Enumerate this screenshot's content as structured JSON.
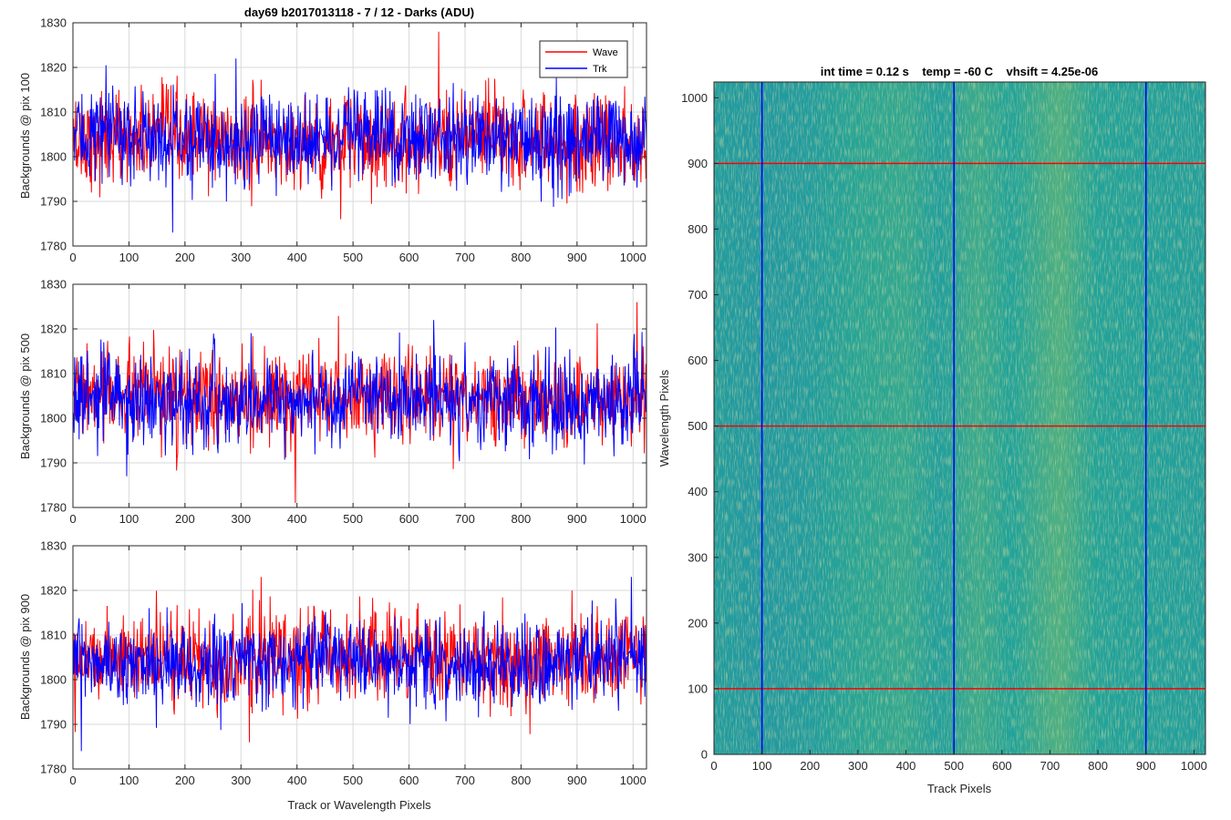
{
  "colors": {
    "wave": "#ff0000",
    "trk": "#0000ff",
    "grid": "#d9d9d9",
    "axis": "#262626",
    "heatmap_base": "#20a39a",
    "heatmap_light": "#7dba6a",
    "heatmap_dark": "#1f8fa8"
  },
  "chart_data": [
    {
      "type": "line",
      "title": "day69 b2017013118 - 7 / 12 - Darks (ADU)",
      "ylabel": "Backgrounds @ pix 100",
      "xlabel": "",
      "xlim": [
        0,
        1024
      ],
      "ylim": [
        1780,
        1830
      ],
      "xticks": [
        0,
        100,
        200,
        300,
        400,
        500,
        600,
        700,
        800,
        900,
        1000
      ],
      "yticks": [
        1780,
        1790,
        1800,
        1810,
        1820,
        1830
      ],
      "grid": true,
      "legend": {
        "placement": "top-right",
        "entries": [
          "Wave",
          "Trk"
        ]
      },
      "series": [
        {
          "name": "Wave",
          "color": "#ff0000",
          "mean": 1803.5,
          "noise_sd": 5.2,
          "points": 1024,
          "min": 1786,
          "max": 1828
        },
        {
          "name": "Trk",
          "color": "#0000ff",
          "mean": 1804.2,
          "noise_sd": 5.0,
          "points": 1024,
          "min": 1783,
          "max": 1822
        }
      ]
    },
    {
      "type": "line",
      "title": "",
      "ylabel": "Backgrounds @ pix 500",
      "xlabel": "",
      "xlim": [
        0,
        1024
      ],
      "ylim": [
        1780,
        1830
      ],
      "xticks": [
        0,
        100,
        200,
        300,
        400,
        500,
        600,
        700,
        800,
        900,
        1000
      ],
      "yticks": [
        1780,
        1790,
        1800,
        1810,
        1820,
        1830
      ],
      "grid": true,
      "series": [
        {
          "name": "Wave",
          "color": "#ff0000",
          "mean": 1804.5,
          "noise_sd": 5.0,
          "points": 1024,
          "min": 1781,
          "max": 1826
        },
        {
          "name": "Trk",
          "color": "#0000ff",
          "mean": 1804.0,
          "noise_sd": 4.8,
          "points": 1024,
          "min": 1787,
          "max": 1822
        }
      ]
    },
    {
      "type": "line",
      "title": "",
      "ylabel": "Backgrounds @ pix 900",
      "xlabel": "Track or Wavelength Pixels",
      "xlim": [
        0,
        1024
      ],
      "ylim": [
        1780,
        1830
      ],
      "xticks": [
        0,
        100,
        200,
        300,
        400,
        500,
        600,
        700,
        800,
        900,
        1000
      ],
      "yticks": [
        1780,
        1790,
        1800,
        1810,
        1820,
        1830
      ],
      "grid": true,
      "series": [
        {
          "name": "Wave",
          "color": "#ff0000",
          "mean": 1805.0,
          "noise_sd": 5.0,
          "points": 1024,
          "min": 1786,
          "max": 1823
        },
        {
          "name": "Trk",
          "color": "#0000ff",
          "mean": 1804.0,
          "noise_sd": 4.6,
          "points": 1024,
          "min": 1784,
          "max": 1823
        }
      ]
    },
    {
      "type": "heatmap",
      "title": "int time = 0.12 s    temp = -60 C    vhsift = 4.25e-06",
      "xlabel": "Track Pixels",
      "ylabel": "Wavelength Pixels",
      "xlim": [
        0,
        1024
      ],
      "ylim": [
        0,
        1024
      ],
      "xticks": [
        0,
        100,
        200,
        300,
        400,
        500,
        600,
        700,
        800,
        900,
        1000
      ],
      "yticks": [
        0,
        100,
        200,
        300,
        400,
        500,
        600,
        700,
        800,
        900,
        1000
      ],
      "grid": false,
      "markers": {
        "vertical_lines_x": [
          100,
          500,
          900
        ],
        "vertical_color": "#0000ff",
        "horizontal_lines_y": [
          100,
          500,
          900
        ],
        "horizontal_color": "#ff0000"
      },
      "column_brightness": [
        {
          "x": 0,
          "level": 0.35
        },
        {
          "x": 100,
          "level": 0.25
        },
        {
          "x": 200,
          "level": 0.35
        },
        {
          "x": 300,
          "level": 0.55
        },
        {
          "x": 400,
          "level": 0.6
        },
        {
          "x": 470,
          "level": 0.4
        },
        {
          "x": 550,
          "level": 0.65
        },
        {
          "x": 620,
          "level": 0.5
        },
        {
          "x": 720,
          "level": 0.75
        },
        {
          "x": 800,
          "level": 0.5
        },
        {
          "x": 900,
          "level": 0.45
        },
        {
          "x": 1024,
          "level": 0.4
        }
      ]
    }
  ]
}
